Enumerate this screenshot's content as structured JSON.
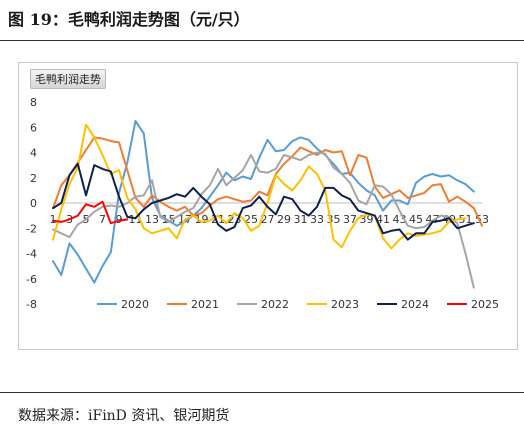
{
  "figure": {
    "title": "图 19：毛鸭利润走势图（元/只）",
    "source": "数据来源：iFinD 资讯、银河期货"
  },
  "chart_data": {
    "type": "line",
    "title": "毛鸭利润走势",
    "xlabel": "",
    "ylabel": "",
    "x": [
      1,
      2,
      3,
      4,
      5,
      6,
      7,
      8,
      9,
      10,
      11,
      12,
      13,
      14,
      15,
      16,
      17,
      18,
      19,
      20,
      21,
      22,
      23,
      24,
      25,
      26,
      27,
      28,
      29,
      30,
      31,
      32,
      33,
      34,
      35,
      36,
      37,
      38,
      39,
      40,
      41,
      42,
      43,
      44,
      45,
      46,
      47,
      48,
      49,
      50,
      51,
      52,
      53
    ],
    "x_ticks": [
      1,
      3,
      5,
      7,
      9,
      11,
      13,
      15,
      17,
      19,
      21,
      23,
      25,
      27,
      29,
      31,
      33,
      35,
      37,
      39,
      41,
      43,
      45,
      47,
      49,
      51,
      53
    ],
    "ylim": [
      -8,
      8
    ],
    "y_ticks": [
      -8,
      -6,
      -4,
      -2,
      0,
      2,
      4,
      6,
      8
    ],
    "grid": false,
    "legend": "bottom",
    "series": [
      {
        "name": "2020",
        "color": "#5b9bd5",
        "values": [
          -4.6,
          -5.7,
          -3.2,
          -4.1,
          -5.2,
          -6.3,
          -5.0,
          -3.9,
          0.8,
          3.2,
          6.5,
          5.5,
          0.4,
          -1.0,
          -1.4,
          -1.8,
          -1.5,
          -1.0,
          -0.4,
          0.5,
          1.4,
          2.4,
          1.8,
          2.1,
          1.9,
          3.6,
          5.0,
          4.1,
          4.2,
          4.9,
          5.2,
          5.0,
          4.3,
          3.8,
          3.1,
          2.3,
          2.4,
          1.6,
          1.0,
          0.6,
          -0.6,
          0.2,
          0.2,
          -0.1,
          1.6,
          2.1,
          2.3,
          2.1,
          2.2,
          1.8,
          1.5,
          0.9,
          null
        ]
      },
      {
        "name": "2021",
        "color": "#ed7d31",
        "values": [
          -0.4,
          1.4,
          2.2,
          3.2,
          4.2,
          5.2,
          5.1,
          4.9,
          4.8,
          2.6,
          0.4,
          -0.3,
          0.6,
          0.1,
          -0.3,
          -0.6,
          -0.3,
          -1.0,
          -0.8,
          -0.2,
          0.3,
          0.5,
          0.3,
          0.1,
          0.2,
          0.9,
          0.6,
          2.3,
          3.1,
          3.7,
          4.4,
          4.1,
          3.8,
          4.2,
          4.0,
          4.1,
          2.2,
          3.8,
          3.6,
          1.3,
          0.4,
          0.7,
          1.0,
          0.4,
          0.6,
          0.8,
          1.4,
          1.5,
          0.1,
          0.5,
          0.1,
          -0.4,
          -1.8
        ]
      },
      {
        "name": "2022",
        "color": "#a5a5a5",
        "values": [
          -2.1,
          -2.4,
          -2.7,
          -1.7,
          -1.3,
          -0.7,
          -0.3,
          -0.2,
          -0.3,
          0.0,
          0.5,
          0.6,
          1.8,
          -1.1,
          -1.5,
          -1.1,
          -0.7,
          -0.4,
          0.7,
          1.4,
          2.7,
          1.4,
          2.0,
          2.6,
          3.8,
          2.5,
          2.4,
          2.7,
          3.8,
          3.6,
          3.4,
          3.8,
          4.0,
          3.9,
          2.8,
          2.3,
          1.6,
          0.2,
          -0.1,
          1.4,
          1.3,
          0.7,
          -0.6,
          -1.8,
          -2.0,
          -1.9,
          -1.4,
          -1.0,
          -1.1,
          -1.6,
          -4.0,
          -6.7,
          null
        ]
      },
      {
        "name": "2023",
        "color": "#ffc000",
        "values": [
          -2.9,
          -0.5,
          1.5,
          2.8,
          6.2,
          5.2,
          3.8,
          2.3,
          2.6,
          0.4,
          -0.5,
          -2.0,
          -2.4,
          -2.2,
          -2.0,
          -2.8,
          -1.3,
          -1.0,
          -1.5,
          -1.4,
          -1.0,
          -1.6,
          -0.8,
          -1.2,
          -2.2,
          -1.8,
          0.0,
          2.2,
          1.5,
          1.0,
          1.8,
          2.9,
          2.3,
          1.0,
          -2.9,
          -3.5,
          -2.2,
          -1.2,
          -0.9,
          -1.0,
          -2.8,
          -3.6,
          -2.9,
          -2.4,
          -2.6,
          -2.5,
          -2.4,
          -2.2,
          -1.5,
          -1.3,
          -1.2,
          null,
          null
        ]
      },
      {
        "name": "2024",
        "color": "#0f1f4f",
        "values": [
          -0.4,
          0.0,
          2.2,
          3.1,
          0.6,
          3.0,
          2.7,
          2.5,
          0.5,
          -1.1,
          -1.2,
          -0.5,
          0.0,
          0.2,
          0.4,
          0.7,
          0.5,
          1.2,
          0.5,
          -0.1,
          -1.7,
          -2.2,
          -1.9,
          -0.4,
          -0.2,
          0.5,
          -0.3,
          -0.9,
          0.5,
          0.3,
          -0.6,
          -1.0,
          -0.3,
          1.2,
          1.2,
          0.6,
          0.3,
          -0.6,
          -0.8,
          -1.0,
          -2.4,
          -2.2,
          -2.1,
          -2.9,
          -2.4,
          -2.4,
          -1.5,
          -1.4,
          -1.2,
          -2.0,
          -1.8,
          -1.6,
          null
        ]
      },
      {
        "name": "2025",
        "color": "#ff0000",
        "values": [
          -1.4,
          -1.5,
          -1.3,
          -1.0,
          -0.1,
          -0.3,
          0.1,
          -1.6,
          -1.4,
          -1.3,
          null,
          null,
          null,
          null,
          null,
          null,
          null,
          null,
          null,
          null,
          null,
          null,
          null,
          null,
          null,
          null,
          null,
          null,
          null,
          null,
          null,
          null,
          null,
          null,
          null,
          null,
          null,
          null,
          null,
          null,
          null,
          null,
          null,
          null,
          null,
          null,
          null,
          null,
          null,
          null,
          null,
          null,
          null
        ]
      }
    ]
  }
}
